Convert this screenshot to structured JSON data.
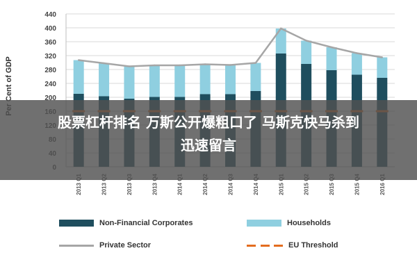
{
  "chart_data": {
    "type": "bar",
    "stacked": true,
    "title": "",
    "xlabel": "",
    "ylabel": "Per Cent of GDP",
    "ylim": [
      0,
      440
    ],
    "yticks": [
      0,
      40,
      80,
      120,
      160,
      200,
      240,
      280,
      320,
      360,
      400,
      440
    ],
    "ytick_labels": [
      "0",
      "40",
      "80",
      "120",
      "160",
      "200",
      "240",
      "280",
      "320",
      "360",
      "400",
      "440"
    ],
    "grid": true,
    "categories": [
      "2013 Q1",
      "2013 Q2",
      "2013 Q3",
      "2013 Q4",
      "2014 Q1",
      "2014 Q2",
      "2014 Q3",
      "2014 Q4",
      "2015 Q1",
      "2015 Q2",
      "2015 Q3",
      "2015 Q4",
      "2016 Q1"
    ],
    "series": [
      {
        "name": "Non-Financial Corporates",
        "kind": "bar",
        "color": "#1f4e5e",
        "values": [
          210,
          203,
          196,
          201,
          201,
          209,
          209,
          218,
          326,
          296,
          278,
          265,
          256
        ]
      },
      {
        "name": "Households",
        "kind": "bar",
        "color": "#8fcfe0",
        "values": [
          97,
          95,
          93,
          91,
          91,
          86,
          84,
          81,
          72,
          67,
          66,
          62,
          59
        ]
      },
      {
        "name": "Private Sector",
        "kind": "line",
        "color": "#a6a6a6",
        "values": [
          307,
          298,
          289,
          292,
          292,
          295,
          293,
          299,
          398,
          363,
          344,
          327,
          315
        ]
      },
      {
        "name": "EU Threshold",
        "kind": "dashed",
        "color": "#e36c1f",
        "values": [
          160,
          160,
          160,
          160,
          160,
          160,
          160,
          160,
          160,
          160,
          160,
          160,
          160
        ]
      }
    ],
    "legend_position": "bottom"
  },
  "legend": {
    "non_financial": "Non-Financial Corporates",
    "households": "Households",
    "private_sector": "Private Sector",
    "eu_threshold": "EU Threshold"
  },
  "colors": {
    "corporates": "#1f4e5e",
    "households": "#8fcfe0",
    "private_sector": "#a6a6a6",
    "threshold": "#e36c1f"
  },
  "overlay": {
    "line1": "股票杠杆排名 万斯公开爆粗口了 马斯克快马杀到",
    "line2": "迅速留言"
  }
}
